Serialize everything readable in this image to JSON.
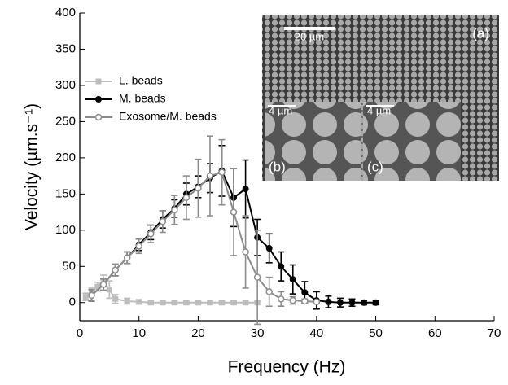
{
  "chart_data": {
    "type": "line",
    "x_label": "Frequency (Hz)",
    "y_label": "Velocity (µm.s⁻¹)",
    "xlim": [
      0,
      70
    ],
    "ylim": [
      -25,
      400
    ],
    "xticks": [
      0,
      10,
      20,
      30,
      40,
      50,
      60,
      70
    ],
    "yticks": [
      0,
      50,
      100,
      150,
      200,
      250,
      300,
      350,
      400
    ],
    "legend": "center left",
    "series": [
      {
        "name": "L. beads",
        "color": "#bdbdbd",
        "marker": "square",
        "x": [
          1,
          2,
          3,
          4,
          5,
          6,
          8,
          10,
          12,
          14,
          16,
          18,
          20,
          22,
          24,
          26,
          28,
          30
        ],
        "values": [
          8,
          15,
          22,
          30,
          18,
          5,
          2,
          1,
          0,
          0,
          0,
          0,
          0,
          0,
          0,
          0,
          0,
          0
        ],
        "errors": [
          5,
          5,
          6,
          8,
          12,
          6,
          4,
          3,
          2,
          2,
          2,
          2,
          2,
          2,
          2,
          2,
          2,
          2
        ]
      },
      {
        "name": "M. beads",
        "color": "#000000",
        "marker": "filled-circle",
        "x": [
          2,
          4,
          6,
          8,
          10,
          12,
          14,
          16,
          18,
          20,
          22,
          24,
          26,
          28,
          30,
          32,
          34,
          36,
          38,
          40,
          42,
          44,
          46,
          48,
          50
        ],
        "values": [
          10,
          25,
          45,
          62,
          80,
          97,
          115,
          130,
          150,
          160,
          172,
          182,
          145,
          157,
          90,
          75,
          50,
          32,
          14,
          3,
          1,
          0,
          0,
          0,
          0
        ],
        "errors": [
          8,
          8,
          8,
          8,
          8,
          10,
          12,
          12,
          15,
          15,
          20,
          35,
          40,
          40,
          25,
          20,
          20,
          20,
          15,
          12,
          8,
          6,
          5,
          3,
          3
        ]
      },
      {
        "name": "Exosome/M. beads",
        "color": "#8c8c8c",
        "marker": "open-circle",
        "x": [
          2,
          4,
          6,
          8,
          10,
          12,
          14,
          16,
          18,
          20,
          22,
          24,
          26,
          28,
          30,
          32,
          34,
          36,
          38,
          40
        ],
        "values": [
          10,
          25,
          45,
          62,
          78,
          95,
          112,
          128,
          145,
          158,
          175,
          180,
          125,
          70,
          35,
          15,
          5,
          3,
          2,
          1
        ],
        "errors": [
          8,
          8,
          8,
          8,
          10,
          12,
          15,
          20,
          30,
          40,
          55,
          45,
          60,
          50,
          65,
          20,
          10,
          5,
          3,
          2
        ]
      }
    ],
    "annotations": [
      "20 µm",
      "(a)",
      "4 µm",
      "(b)",
      "4 µm",
      "(c)"
    ]
  }
}
